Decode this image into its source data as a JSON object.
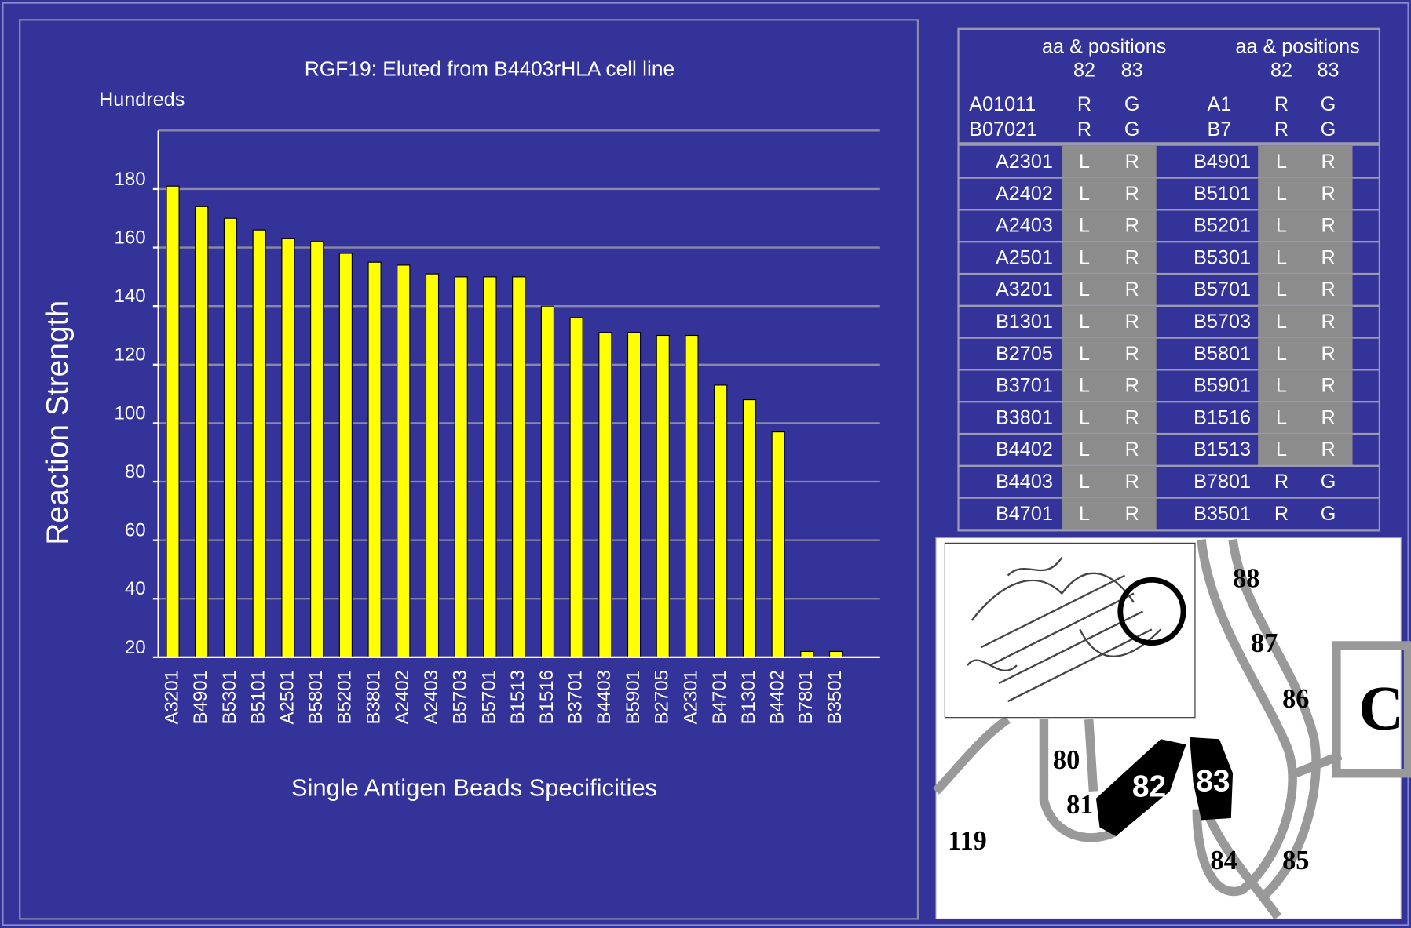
{
  "chart_data": {
    "type": "bar",
    "title": "RGF19: Eluted from B4403rHLA cell line",
    "unit_label": "Hundreds",
    "y_label": "Reaction Strength",
    "x_label": "Single Antigen Beads Specificities",
    "categories": [
      "A3201",
      "B4901",
      "B5301",
      "B5101",
      "A2501",
      "B5801",
      "B5201",
      "B3801",
      "A2402",
      "A2403",
      "B5703",
      "B5701",
      "B1513",
      "B1516",
      "B3701",
      "B4403",
      "B5901",
      "B2705",
      "A2301",
      "B4701",
      "B1301",
      "B4402",
      "B7801",
      "B3501"
    ],
    "values": [
      181,
      174,
      170,
      166,
      163,
      162,
      158,
      155,
      154,
      151,
      150,
      150,
      150,
      140,
      136,
      131,
      131,
      130,
      130,
      113,
      108,
      97,
      22,
      22
    ],
    "color": "#ffff00",
    "ylim": [
      20,
      200
    ],
    "yticks": [
      20,
      40,
      60,
      80,
      100,
      120,
      140,
      160,
      180
    ],
    "grid": true
  },
  "table": {
    "header": [
      "aa & positions",
      "aa & positions"
    ],
    "positions": [
      "82",
      "83",
      "82",
      "83"
    ],
    "reference_rows": [
      [
        "A01011",
        "R",
        "G",
        "A1",
        "R",
        "G"
      ],
      [
        "B07021",
        "R",
        "G",
        "B7",
        "R",
        "G"
      ]
    ],
    "rows": [
      [
        "A2301",
        "L",
        "R",
        "B4901",
        "L",
        "R"
      ],
      [
        "A2402",
        "L",
        "R",
        "B5101",
        "L",
        "R"
      ],
      [
        "A2403",
        "L",
        "R",
        "B5201",
        "L",
        "R"
      ],
      [
        "A2501",
        "L",
        "R",
        "B5301",
        "L",
        "R"
      ],
      [
        "A3201",
        "L",
        "R",
        "B5701",
        "L",
        "R"
      ],
      [
        "B1301",
        "L",
        "R",
        "B5703",
        "L",
        "R"
      ],
      [
        "B2705",
        "L",
        "R",
        "B5801",
        "L",
        "R"
      ],
      [
        "B3701",
        "L",
        "R",
        "B5901",
        "L",
        "R"
      ],
      [
        "B3801",
        "L",
        "R",
        "B1516",
        "L",
        "R"
      ],
      [
        "B4402",
        "L",
        "R",
        "B1513",
        "L",
        "R"
      ],
      [
        "B4403",
        "L",
        "R",
        "B7801",
        "R",
        "G"
      ],
      [
        "B4701",
        "L",
        "R",
        "B3501",
        "R",
        "G"
      ]
    ]
  },
  "figure": {
    "labels": [
      "88",
      "87",
      "86",
      "C",
      "80",
      "81",
      "82",
      "83",
      "84",
      "85",
      "119"
    ]
  }
}
